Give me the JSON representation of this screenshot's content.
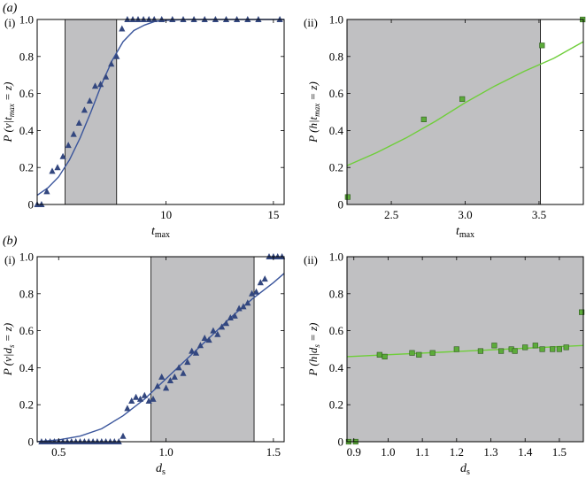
{
  "figure": {
    "section_labels": [
      "(a)",
      "(b)"
    ]
  },
  "chart_data": [
    {
      "panel": "(i)",
      "section": "(a)",
      "type": "scatter",
      "xlabel": "t",
      "xlabel_sub": "max",
      "ylabel": "P (v|t",
      "ylabel_sub": "max",
      "ylabel_end": " = z)",
      "xlim": [
        4,
        15.5
      ],
      "ylim": [
        0,
        1
      ],
      "xticks": [
        10,
        15
      ],
      "yticks": [
        0,
        0.2,
        0.4,
        0.6,
        0.8,
        1.0
      ],
      "ytick_labels": [
        "0",
        "0.2",
        "0.4",
        "0.6",
        "0.8",
        "1.0"
      ],
      "shaded_region": [
        5.3,
        7.7
      ],
      "marker": "triangle",
      "marker_color": "#33477f",
      "line_color": "#3a559c",
      "points_x": [
        4.0,
        4.2,
        4.45,
        4.7,
        4.95,
        5.2,
        5.45,
        5.7,
        5.95,
        6.2,
        6.45,
        6.7,
        6.95,
        7.2,
        7.45,
        7.7,
        7.95,
        8.2,
        8.45,
        8.7,
        8.95,
        9.2,
        9.45,
        9.8,
        10.3,
        10.8,
        11.3,
        11.8,
        12.3,
        12.8,
        13.3,
        13.8,
        14.3,
        15.3
      ],
      "points_y": [
        0.0,
        0.0,
        0.07,
        0.18,
        0.2,
        0.26,
        0.32,
        0.38,
        0.44,
        0.51,
        0.56,
        0.64,
        0.65,
        0.69,
        0.76,
        0.8,
        0.95,
        1.0,
        1.0,
        1.0,
        1.0,
        1.0,
        1.0,
        1.0,
        1.0,
        1.0,
        1.0,
        1.0,
        1.0,
        1.0,
        1.0,
        1.0,
        1.0,
        1.0
      ],
      "curve_x": [
        4.0,
        4.5,
        5.0,
        5.5,
        6.0,
        6.5,
        7.0,
        7.5,
        8.0,
        8.5,
        9.0,
        9.5,
        10.0,
        11.0,
        12.0,
        13.0,
        14.0,
        15.5
      ],
      "curve_y": [
        0.05,
        0.09,
        0.15,
        0.24,
        0.36,
        0.5,
        0.65,
        0.78,
        0.88,
        0.94,
        0.97,
        0.99,
        0.995,
        1.0,
        1.0,
        1.0,
        1.0,
        1.0
      ]
    },
    {
      "panel": "(ii)",
      "section": "(a)",
      "type": "scatter",
      "xlabel": "t",
      "xlabel_sub": "max",
      "ylabel": "P (h|t",
      "ylabel_sub": "max",
      "ylabel_end": " = z)",
      "xlim": [
        2.2,
        3.8
      ],
      "ylim": [
        0,
        1
      ],
      "xticks": [
        2.5,
        3.0,
        3.5
      ],
      "xtick_labels": [
        "2.5",
        "3.0",
        "3.5"
      ],
      "yticks": [
        0,
        0.2,
        0.4,
        0.6,
        0.8,
        1.0
      ],
      "ytick_labels": [
        "0",
        "0.2",
        "0.4",
        "0.6",
        "0.8",
        "1.0"
      ],
      "shaded_region": [
        2.2,
        3.51
      ],
      "marker": "square",
      "marker_color": "#5cab3a",
      "line_color": "#6fce3a",
      "points_x": [
        2.205,
        2.72,
        2.98,
        3.52,
        3.795
      ],
      "points_y": [
        0.04,
        0.46,
        0.57,
        0.86,
        1.0
      ],
      "curve_x": [
        2.2,
        2.4,
        2.6,
        2.8,
        3.0,
        3.2,
        3.4,
        3.6,
        3.8
      ],
      "curve_y": [
        0.21,
        0.28,
        0.36,
        0.45,
        0.55,
        0.64,
        0.72,
        0.79,
        0.88
      ]
    },
    {
      "panel": "(i)",
      "section": "(b)",
      "type": "scatter",
      "xlabel": "d",
      "xlabel_sub": "s",
      "ylabel": "P (v|d",
      "ylabel_sub": "s",
      "ylabel_end": " = z)",
      "xlim": [
        0.4,
        1.55
      ],
      "ylim": [
        0,
        1
      ],
      "xticks": [
        0.5,
        1.0,
        1.5
      ],
      "xtick_labels": [
        "0.5",
        "1.0",
        "1.5"
      ],
      "yticks": [
        0,
        0.2,
        0.4,
        0.6,
        0.8,
        1.0
      ],
      "ytick_labels": [
        "0",
        "0.2",
        "0.4",
        "0.6",
        "0.8",
        "1.0"
      ],
      "shaded_region": [
        0.93,
        1.41
      ],
      "marker": "triangle",
      "marker_color": "#33477f",
      "line_color": "#3a559c",
      "points_x": [
        0.42,
        0.44,
        0.46,
        0.48,
        0.5,
        0.52,
        0.54,
        0.56,
        0.58,
        0.6,
        0.62,
        0.64,
        0.66,
        0.68,
        0.7,
        0.72,
        0.74,
        0.76,
        0.78,
        0.8,
        0.82,
        0.84,
        0.86,
        0.88,
        0.9,
        0.92,
        0.94,
        0.96,
        0.98,
        1.0,
        1.02,
        1.04,
        1.06,
        1.08,
        1.1,
        1.12,
        1.14,
        1.16,
        1.18,
        1.2,
        1.22,
        1.24,
        1.26,
        1.28,
        1.3,
        1.32,
        1.34,
        1.36,
        1.38,
        1.4,
        1.42,
        1.44,
        1.46,
        1.48,
        1.5,
        1.52,
        1.54
      ],
      "points_y": [
        0.0,
        0.0,
        0.0,
        0.0,
        0.0,
        0.0,
        0.0,
        0.0,
        0.0,
        0.0,
        0.0,
        0.0,
        0.0,
        0.0,
        0.0,
        0.0,
        0.0,
        0.0,
        0.0,
        0.03,
        0.18,
        0.22,
        0.24,
        0.23,
        0.25,
        0.22,
        0.23,
        0.3,
        0.35,
        0.29,
        0.33,
        0.35,
        0.4,
        0.37,
        0.43,
        0.49,
        0.48,
        0.52,
        0.56,
        0.55,
        0.6,
        0.58,
        0.62,
        0.64,
        0.67,
        0.68,
        0.72,
        0.73,
        0.75,
        0.8,
        0.81,
        0.86,
        0.88,
        1.0,
        1.0,
        1.0,
        1.0
      ],
      "curve_x": [
        0.4,
        0.5,
        0.6,
        0.7,
        0.8,
        0.9,
        1.0,
        1.1,
        1.2,
        1.3,
        1.4,
        1.5,
        1.55
      ],
      "curve_y": [
        0.0,
        0.01,
        0.03,
        0.07,
        0.14,
        0.23,
        0.34,
        0.45,
        0.56,
        0.67,
        0.77,
        0.86,
        0.91
      ]
    },
    {
      "panel": "(ii)",
      "section": "(b)",
      "type": "scatter",
      "xlabel": "d",
      "xlabel_sub": "s",
      "ylabel": "P (h|d",
      "ylabel_sub": "s",
      "ylabel_end": " = z)",
      "xlim": [
        0.88,
        1.57
      ],
      "ylim": [
        0,
        1
      ],
      "xticks": [
        0.9,
        1.0,
        1.1,
        1.2,
        1.3,
        1.4,
        1.5
      ],
      "xtick_labels": [
        "0.9",
        "1.0",
        "1.1",
        "1.2",
        "1.3",
        "1.4",
        "1.5"
      ],
      "yticks": [
        0,
        0.2,
        0.4,
        0.6,
        0.8,
        1.0
      ],
      "ytick_labels": [
        "0",
        "0.2",
        "0.4",
        "0.6",
        "0.8",
        "1.0"
      ],
      "shaded_region": [
        0.88,
        1.57
      ],
      "marker": "square",
      "marker_color": "#5cab3a",
      "line_color": "#6fce3a",
      "points_x": [
        0.885,
        0.905,
        0.975,
        0.99,
        1.07,
        1.09,
        1.13,
        1.2,
        1.27,
        1.31,
        1.33,
        1.36,
        1.37,
        1.4,
        1.43,
        1.45,
        1.48,
        1.5,
        1.52,
        1.565
      ],
      "points_y": [
        0.0,
        0.0,
        0.47,
        0.46,
        0.48,
        0.47,
        0.48,
        0.5,
        0.49,
        0.52,
        0.49,
        0.5,
        0.49,
        0.51,
        0.52,
        0.5,
        0.5,
        0.5,
        0.51,
        0.7
      ],
      "curve_x": [
        0.88,
        1.57
      ],
      "curve_y": [
        0.46,
        0.52
      ]
    }
  ]
}
